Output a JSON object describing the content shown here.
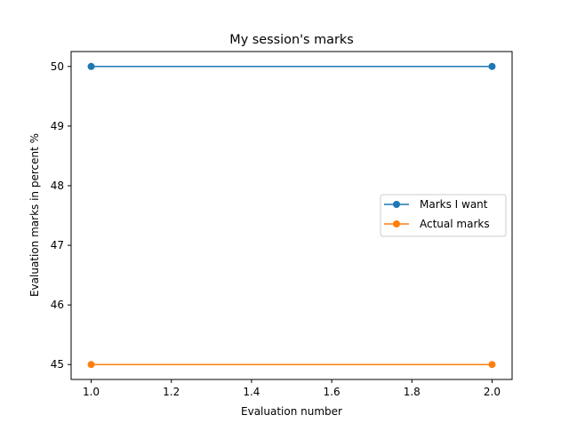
{
  "chart_data": {
    "type": "line",
    "title": "My session's marks",
    "xlabel": "Evaluation number",
    "ylabel": "Evaluation marks in percent %",
    "x": [
      1.0,
      2.0
    ],
    "series": [
      {
        "name": "Marks I want",
        "values": [
          50,
          50
        ],
        "color": "#1f77b4",
        "marker": "circle"
      },
      {
        "name": "Actual marks",
        "values": [
          45,
          45
        ],
        "color": "#ff7f0e",
        "marker": "circle"
      }
    ],
    "xlim": [
      0.95,
      2.05
    ],
    "ylim": [
      44.75,
      50.25
    ],
    "xticks": [
      "1.0",
      "1.2",
      "1.4",
      "1.6",
      "1.8",
      "2.0"
    ],
    "yticks": [
      "45",
      "46",
      "47",
      "48",
      "49",
      "50"
    ],
    "grid": false,
    "legend_position": "center-right"
  }
}
